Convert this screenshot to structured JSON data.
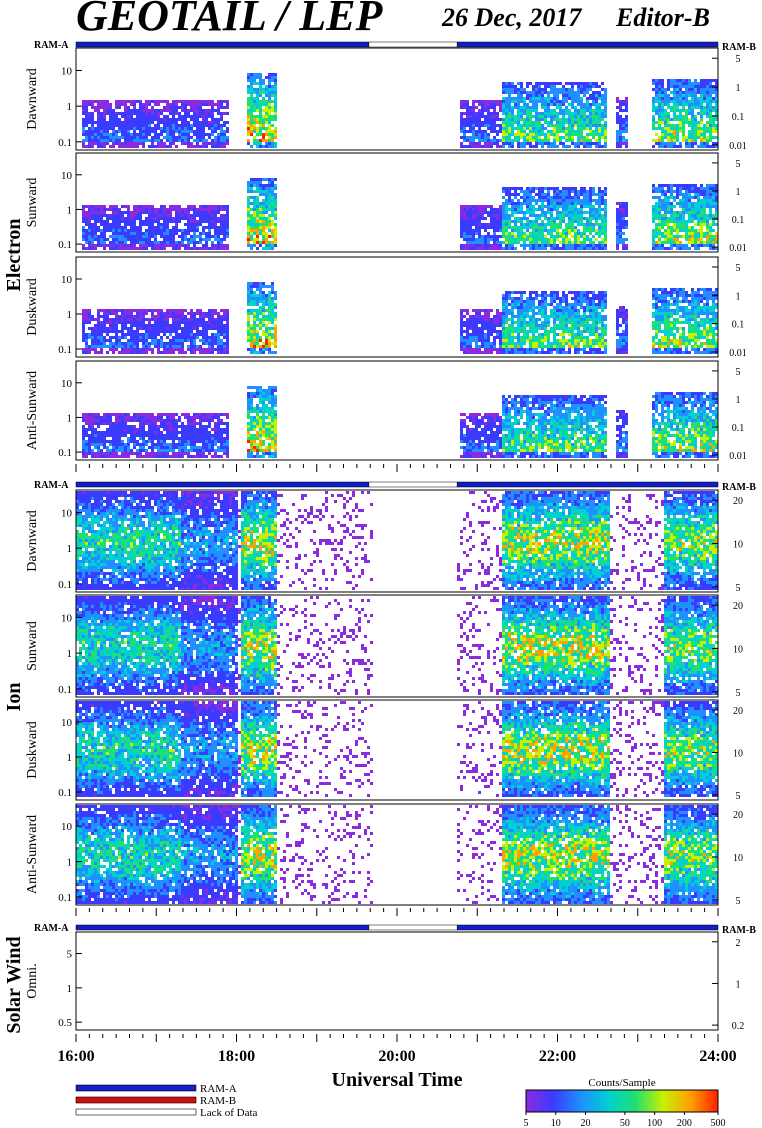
{
  "header": {
    "title": "GEOTAIL / LEP",
    "date": "26 Dec, 2017",
    "editor": "Editor-B"
  },
  "ram_labels": {
    "left": "RAM-A",
    "right": "RAM-B"
  },
  "groups": [
    {
      "name": "Electron"
    },
    {
      "name": "Ion"
    },
    {
      "name": "Solar Wind"
    }
  ],
  "panels": [
    {
      "group": 0,
      "label": "Dawnward",
      "left_ticks": [
        "10",
        "1",
        "0.1"
      ],
      "right_ticks": [
        "5",
        "1",
        "0.1",
        "0.01"
      ]
    },
    {
      "group": 0,
      "label": "Sunward",
      "left_ticks": [
        "10",
        "1",
        "0.1"
      ],
      "right_ticks": [
        "5",
        "1",
        "0.1",
        "0.01"
      ]
    },
    {
      "group": 0,
      "label": "Duskward",
      "left_ticks": [
        "10",
        "1",
        "0.1"
      ],
      "right_ticks": [
        "5",
        "1",
        "0.1",
        "0.01"
      ]
    },
    {
      "group": 0,
      "label": "Anti-Sunward",
      "left_ticks": [
        "10",
        "1",
        "0.1"
      ],
      "right_ticks": [
        "5",
        "1",
        "0.1",
        "0.01"
      ]
    },
    {
      "group": 1,
      "label": "Dawnward",
      "left_ticks": [
        "10",
        "1",
        "0.1"
      ],
      "right_ticks": [
        "20",
        "10",
        "5"
      ]
    },
    {
      "group": 1,
      "label": "Sunward",
      "left_ticks": [
        "10",
        "1",
        "0.1"
      ],
      "right_ticks": [
        "20",
        "10",
        "5"
      ]
    },
    {
      "group": 1,
      "label": "Duskward",
      "left_ticks": [
        "10",
        "1",
        "0.1"
      ],
      "right_ticks": [
        "20",
        "10",
        "5"
      ]
    },
    {
      "group": 1,
      "label": "Anti-Sunward",
      "left_ticks": [
        "10",
        "1",
        "0.1"
      ],
      "right_ticks": [
        "20",
        "10",
        "5"
      ]
    },
    {
      "group": 2,
      "label": "Omni.",
      "left_ticks": [
        "5",
        "1",
        "0.5"
      ],
      "right_ticks": [
        "2",
        "1",
        "0.2"
      ]
    }
  ],
  "chart_data": {
    "type": "heatmap",
    "xlabel": "Universal Time",
    "x_ticks": [
      "16:00",
      "18:00",
      "20:00",
      "22:00",
      "24:00"
    ],
    "xlim": [
      16,
      24
    ],
    "ram_status": [
      {
        "start": 16.0,
        "end": 19.65,
        "mode": "RAM-A"
      },
      {
        "start": 19.65,
        "end": 20.75,
        "mode": "Lack of Data"
      },
      {
        "start": 20.75,
        "end": 24.0,
        "mode": "RAM-A"
      }
    ],
    "data_gap": [
      19.68,
      20.72
    ],
    "electron_activity": [
      {
        "start": 16.05,
        "end": 17.9,
        "level": 0.25
      },
      {
        "start": 18.1,
        "end": 18.5,
        "level": 0.7
      },
      {
        "start": 20.75,
        "end": 21.3,
        "level": 0.25
      },
      {
        "start": 21.3,
        "end": 22.6,
        "level": 0.55
      },
      {
        "start": 22.7,
        "end": 22.85,
        "level": 0.3
      },
      {
        "start": 23.15,
        "end": 24.0,
        "level": 0.6
      }
    ],
    "ion_activity": [
      {
        "start": 16.0,
        "end": 17.3,
        "level": 0.45
      },
      {
        "start": 17.3,
        "end": 18.0,
        "level": 0.3
      },
      {
        "start": 18.05,
        "end": 18.5,
        "level": 0.6
      },
      {
        "start": 18.5,
        "end": 19.65,
        "level": 0.08
      },
      {
        "start": 20.75,
        "end": 21.3,
        "level": 0.1
      },
      {
        "start": 21.3,
        "end": 22.65,
        "level": 0.6
      },
      {
        "start": 22.65,
        "end": 23.3,
        "level": 0.1
      },
      {
        "start": 23.3,
        "end": 24.0,
        "level": 0.55
      }
    ],
    "legend": [
      {
        "label": "RAM-A",
        "color": "#1020c8"
      },
      {
        "label": "RAM-B",
        "color": "#d01010"
      },
      {
        "label": "Lack of Data",
        "color": "#ffffff"
      }
    ],
    "colorbar": {
      "title": "Counts/Sample",
      "ticks": [
        "5",
        "10",
        "20",
        "50",
        "100",
        "200",
        "500"
      ]
    }
  }
}
